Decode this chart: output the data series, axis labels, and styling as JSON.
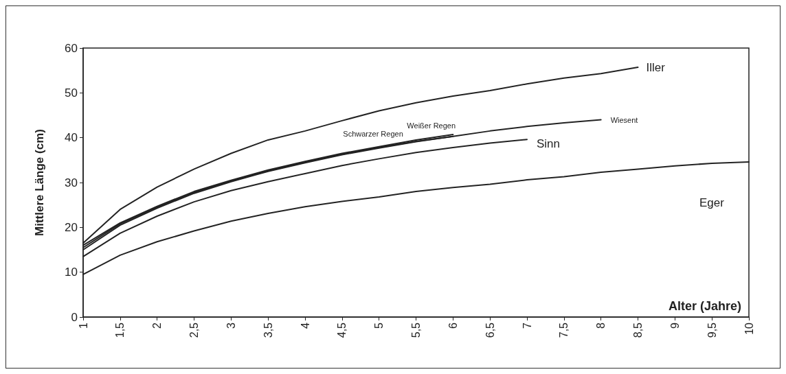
{
  "chart_data": {
    "type": "line",
    "xlabel": "Alter (Jahre)",
    "ylabel": "Mittlere Länge (cm)",
    "categories": [
      "1",
      "1,5",
      "2",
      "2,5",
      "3",
      "3,5",
      "4",
      "4,5",
      "5",
      "5,5",
      "6",
      "6,5",
      "7",
      "7,5",
      "8",
      "8,5",
      "9",
      "9,5",
      "10"
    ],
    "ylim": [
      0,
      60
    ],
    "yticks": [
      0,
      10,
      20,
      30,
      40,
      50,
      60
    ],
    "grid": false,
    "legend": false,
    "marker": "none",
    "line_style": "solid",
    "series": [
      {
        "name": "Iller",
        "color": "#222222",
        "values": [
          16.5,
          24,
          29,
          33,
          36.5,
          39.5,
          41.5,
          43.8,
          46,
          47.8,
          49.3,
          50.5,
          52,
          53.3,
          54.3,
          55.7,
          null,
          null,
          null
        ]
      },
      {
        "name": "Weißer Regen",
        "color": "#222222",
        "values": [
          16,
          21,
          24.7,
          28,
          30.5,
          32.8,
          34.7,
          36.5,
          38,
          39.5,
          40.7,
          null,
          null,
          null,
          null,
          null,
          null,
          null,
          null
        ]
      },
      {
        "name": "Schwarzer Regen",
        "color": "#222222",
        "values": [
          15,
          20.5,
          24.3,
          27.6,
          30.2,
          32.5,
          34.4,
          36.2,
          37.7,
          39.1,
          40.3,
          null,
          null,
          null,
          null,
          null,
          null,
          null,
          null
        ]
      },
      {
        "name": "Wiesent",
        "color": "#222222",
        "values": [
          15.5,
          20.8,
          24.5,
          27.8,
          30.3,
          32.6,
          34.5,
          36.3,
          37.8,
          39.2,
          40.3,
          41.5,
          42.5,
          43.3,
          44,
          null,
          null,
          null,
          null
        ]
      },
      {
        "name": "Sinn",
        "color": "#222222",
        "values": [
          13.5,
          18.7,
          22.5,
          25.7,
          28.2,
          30.2,
          32,
          33.8,
          35.3,
          36.7,
          37.8,
          38.8,
          39.6,
          null,
          null,
          null,
          null,
          null,
          null
        ]
      },
      {
        "name": "Eger",
        "color": "#222222",
        "values": [
          9.5,
          13.8,
          16.8,
          19.2,
          21.4,
          23.1,
          24.6,
          25.8,
          26.8,
          28,
          28.9,
          29.6,
          30.6,
          31.3,
          32.3,
          33,
          33.7,
          34.3,
          34.6
        ]
      }
    ]
  }
}
